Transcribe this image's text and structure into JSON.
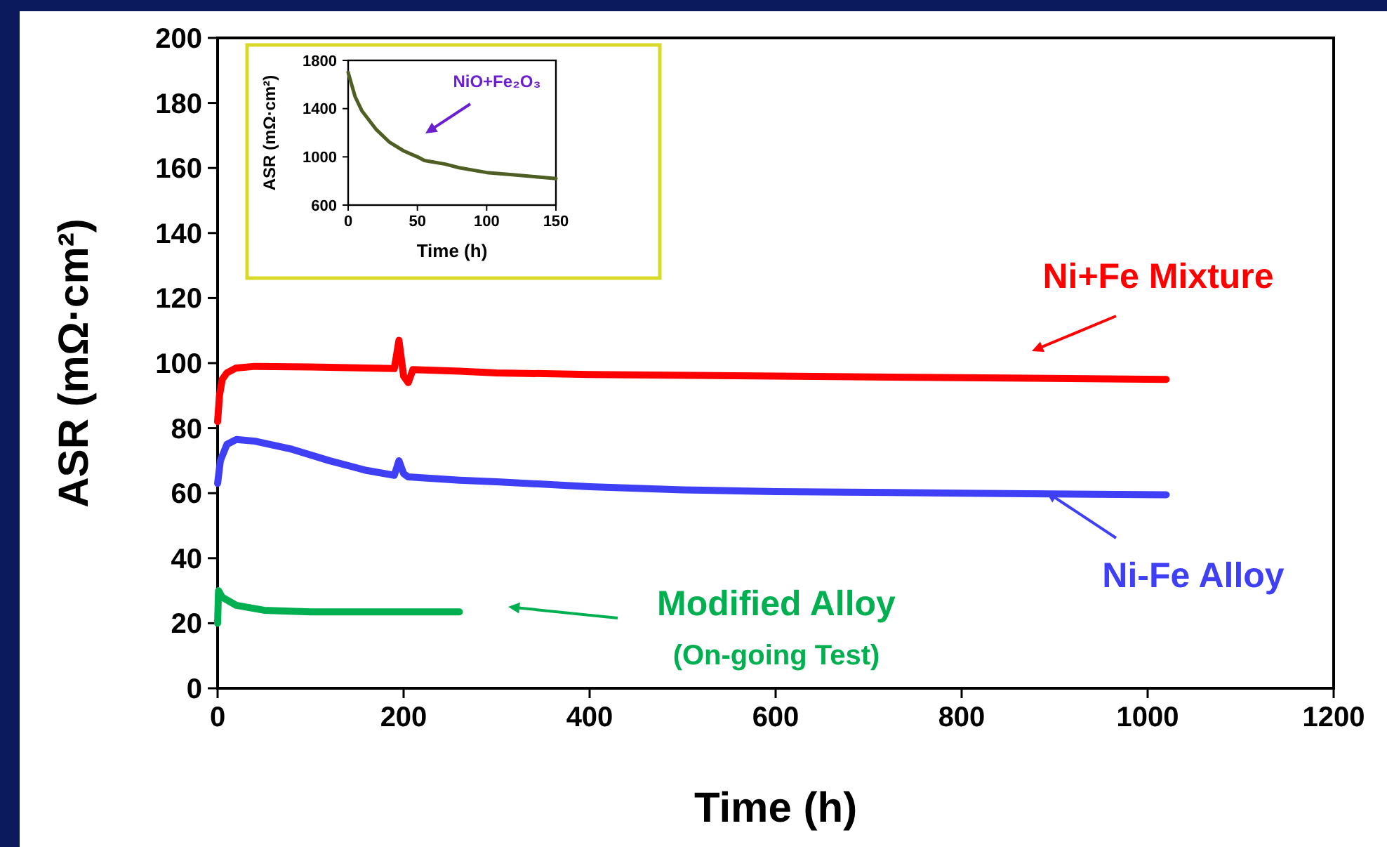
{
  "chart_data": [
    {
      "type": "line",
      "xlabel": "Time (h)",
      "ylabel": "ASR (mΩ·cm²)",
      "xlim": [
        0,
        1200
      ],
      "xticks": [
        0,
        200,
        400,
        600,
        800,
        1000,
        1200
      ],
      "ylim": [
        0,
        200
      ],
      "yticks": [
        0,
        20,
        40,
        60,
        80,
        100,
        120,
        140,
        160,
        180,
        200
      ],
      "grid": false,
      "legend": "bottom left",
      "marker": "none",
      "line_style": "solid",
      "annotations": [
        "(On-going Test)"
      ],
      "series": [
        {
          "name": "Ni+Fe Mixture",
          "color": "#ff0000",
          "x": [
            0,
            2,
            5,
            10,
            20,
            40,
            100,
            190,
            195,
            200,
            205,
            210,
            260,
            300,
            400,
            600,
            800,
            1020
          ],
          "values": [
            82,
            90,
            95,
            97,
            98.5,
            99,
            98.8,
            98.3,
            107,
            96,
            94,
            98,
            97.5,
            97,
            96.5,
            96,
            95.5,
            95
          ]
        },
        {
          "name": "Ni-Fe Alloy",
          "color": "#3f3ff5",
          "x": [
            0,
            3,
            10,
            20,
            40,
            80,
            120,
            160,
            190,
            195,
            200,
            205,
            260,
            300,
            400,
            500,
            600,
            800,
            1020
          ],
          "values": [
            63,
            70,
            75,
            76.5,
            76,
            73.5,
            70,
            67,
            65.5,
            70,
            66,
            65,
            64,
            63.5,
            62,
            61,
            60.5,
            60,
            59.5
          ]
        },
        {
          "name": "Modified Alloy",
          "color": "#00b050",
          "x": [
            0,
            1,
            5,
            20,
            50,
            100,
            200,
            260
          ],
          "values": [
            20,
            30,
            28,
            25.5,
            24,
            23.5,
            23.5,
            23.5
          ]
        }
      ]
    },
    {
      "type": "line",
      "xlabel": "Time (h)",
      "ylabel": "ASR (mΩ·cm²)",
      "xlim": [
        0,
        150
      ],
      "xticks": [
        0,
        50,
        100,
        150
      ],
      "ylim": [
        600,
        1800
      ],
      "yticks": [
        600,
        1000,
        1400,
        1800
      ],
      "grid": false,
      "marker": "none",
      "line_style": "solid",
      "annotations": [
        "NiO+Fe₂O₃"
      ],
      "series": [
        {
          "color": "#4f5f23",
          "x": [
            0,
            5,
            10,
            20,
            30,
            40,
            50,
            55,
            60,
            70,
            80,
            100,
            120,
            140,
            150
          ],
          "values": [
            1700,
            1500,
            1380,
            1230,
            1120,
            1050,
            1000,
            970,
            960,
            940,
            910,
            870,
            850,
            830,
            820
          ]
        }
      ]
    }
  ]
}
